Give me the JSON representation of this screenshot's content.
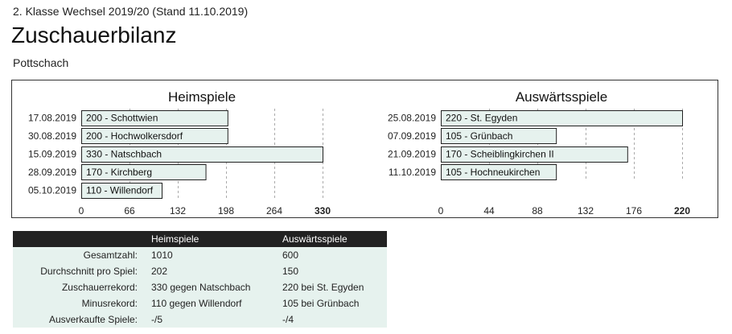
{
  "header": {
    "subtitle": "2. Klasse Wechsel 2019/20 (Stand 11.10.2019)",
    "title": "Zuschauerbilanz",
    "club": "Pottschach"
  },
  "chart_data": [
    {
      "type": "bar",
      "orientation": "horizontal",
      "title": "Heimspiele",
      "categories": [
        "17.08.2019",
        "30.08.2019",
        "15.09.2019",
        "28.09.2019",
        "05.10.2019"
      ],
      "values": [
        200,
        200,
        330,
        170,
        110
      ],
      "bar_labels": [
        "200 - Schottwien",
        "200 - Hochwolkersdorf",
        "330 - Natschbach",
        "170 - Kirchberg",
        "110 - Willendorf"
      ],
      "xlim": [
        0,
        330
      ],
      "ticks": [
        0,
        66,
        132,
        198,
        264,
        330
      ],
      "grid": true
    },
    {
      "type": "bar",
      "orientation": "horizontal",
      "title": "Auswärtsspiele",
      "categories": [
        "25.08.2019",
        "07.09.2019",
        "21.09.2019",
        "11.10.2019"
      ],
      "values": [
        220,
        105,
        170,
        105
      ],
      "bar_labels": [
        "220 - St. Egyden",
        "105 - Grünbach",
        "170 - Scheiblingkirchen II",
        "105 - Hochneukirchen"
      ],
      "xlim": [
        0,
        220
      ],
      "ticks": [
        0,
        44,
        88,
        132,
        176,
        220
      ],
      "grid": true
    }
  ],
  "stats": {
    "columns": [
      "",
      "Heimspiele",
      "Auswärtsspiele"
    ],
    "rows": [
      [
        "Gesamtzahl:",
        "1010",
        "600"
      ],
      [
        "Durchschnitt pro Spiel:",
        "202",
        "150"
      ],
      [
        "Zuschauerrekord:",
        "330 gegen Natschbach",
        "220 bei St. Egyden"
      ],
      [
        "Minusrekord:",
        "110 gegen Willendorf",
        "105 bei Grünbach"
      ],
      [
        "Ausverkaufte Spiele:",
        "-/5",
        "-/4"
      ]
    ]
  },
  "colors": {
    "bar_fill": "#e6f2ee",
    "table_header": "#222222",
    "table_row": "#e6f2ee"
  }
}
